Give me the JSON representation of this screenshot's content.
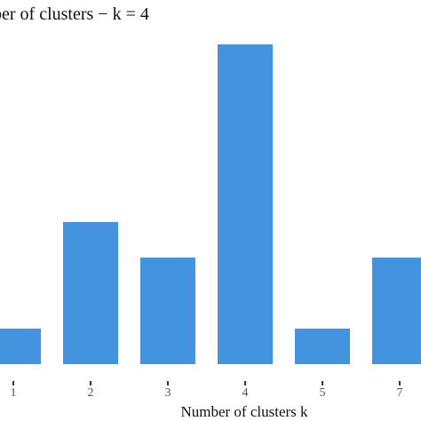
{
  "chart_data": {
    "type": "bar",
    "title": "ber of clusters − k = 4",
    "xlabel": "Number of clusters k",
    "ylabel": "",
    "categories": [
      "1",
      "2",
      "3",
      "4",
      "5",
      "7"
    ],
    "values": [
      1,
      4,
      3,
      9,
      1,
      3
    ],
    "ylim": [
      0,
      9.5
    ],
    "grid": false,
    "bar_color": "#4493DE"
  }
}
